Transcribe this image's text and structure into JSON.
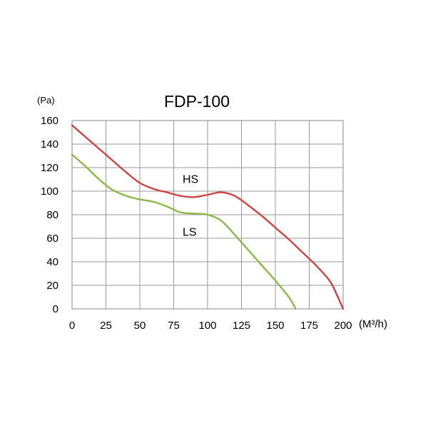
{
  "chart_data": {
    "type": "line",
    "title": "FDP-100",
    "ylabel": "(Pa)",
    "xlabel": "(M³/h)",
    "xlim": [
      0,
      200
    ],
    "ylim": [
      0,
      160
    ],
    "x_ticks": [
      "0",
      "25",
      "50",
      "75",
      "100",
      "125",
      "150",
      "175",
      "200"
    ],
    "y_ticks": [
      "160",
      "140",
      "120",
      "100",
      "80",
      "60",
      "40",
      "20",
      "0"
    ],
    "grid": true,
    "series": [
      {
        "name": "HS",
        "color": "#cc4444",
        "x": [
          0,
          10,
          20,
          30,
          40,
          50,
          60,
          70,
          80,
          90,
          100,
          110,
          120,
          130,
          140,
          150,
          160,
          170,
          180,
          190,
          195,
          200
        ],
        "y": [
          156,
          146,
          136,
          126,
          116,
          107,
          102,
          99,
          96,
          95,
          97,
          99,
          96,
          88,
          79,
          69,
          59,
          48,
          37,
          24,
          13,
          0
        ]
      },
      {
        "name": "LS",
        "color": "#8ab84a",
        "x": [
          0,
          10,
          20,
          30,
          40,
          50,
          60,
          70,
          80,
          90,
          100,
          110,
          120,
          130,
          140,
          150,
          160,
          165
        ],
        "y": [
          131,
          121,
          110,
          101,
          96,
          93,
          91,
          87,
          82,
          81,
          80,
          75,
          63,
          50,
          37,
          24,
          10,
          0
        ]
      }
    ]
  }
}
